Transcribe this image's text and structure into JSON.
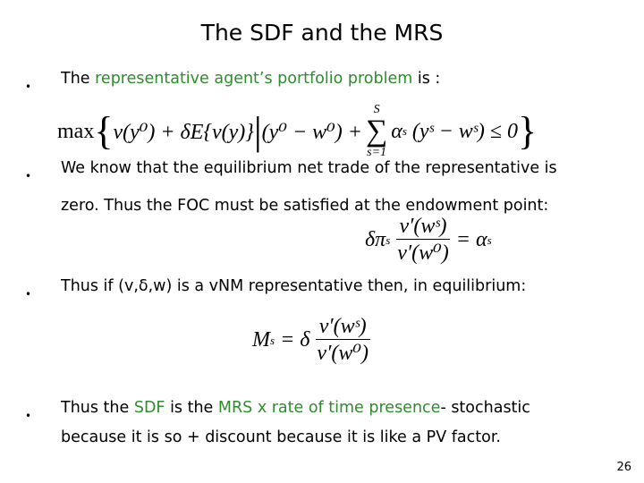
{
  "title": "The SDF and the MRS",
  "bullets": [
    {
      "parts": [
        "The ",
        "representative agent’s portfolio problem",
        " is :"
      ]
    },
    {
      "lines": [
        "We know that the equilibrium net trade of the representative is",
        "zero. Thus the FOC must be satisfied at the endowment point:"
      ]
    },
    {
      "text": "Thus if (v,δ,w) is a vNM representative then, in equilibrium:"
    },
    {
      "parts": [
        "Thus the ",
        "SDF",
        " is the ",
        "MRS x rate of time presence",
        "- stochastic"
      ],
      "line2": "because it is so + discount because it is like a PV factor."
    }
  ],
  "equations": {
    "eq1": {
      "max": "max",
      "obj": "v(y⁰) + δE{v(y)}",
      "constraint": "(y⁰ − w⁰) + ",
      "sum_top": "S",
      "sum_bottom": "s=1",
      "sum_body": "α",
      "sum_sub": "s",
      "tail": "(yˢ − wˢ) ≤ 0"
    },
    "eq2": {
      "lhs": "δπ",
      "lhs_sub": "s",
      "num": "v′(wˢ)",
      "den": "v′(w⁰)",
      "rhs": "= α",
      "rhs_sub": "s"
    },
    "eq3": {
      "lhs": "M",
      "lhs_sub": "s",
      "eq": "= δ",
      "num": "v′(wˢ)",
      "den": "v′(w⁰)"
    }
  },
  "colors": {
    "highlight": "#2e8b2e"
  },
  "page_number": "26"
}
